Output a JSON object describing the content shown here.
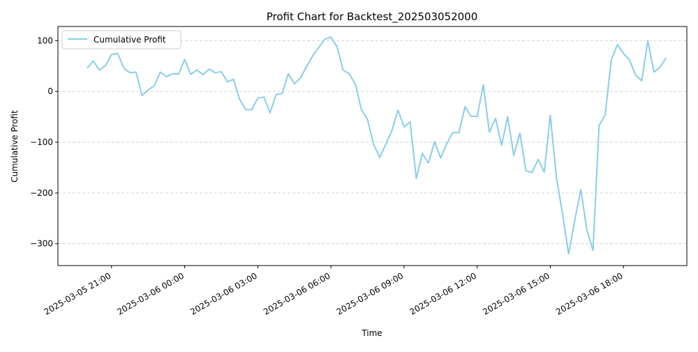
{
  "chart_data": {
    "type": "line",
    "title": "Profit Chart for Backtest_202503052000",
    "xlabel": "Time",
    "ylabel": "Cumulative Profit",
    "legend": {
      "position": "top-left",
      "entries": [
        "Cumulative Profit"
      ]
    },
    "grid": {
      "y": true,
      "x": false,
      "style": "dashed"
    },
    "ylim": [
      -343,
      128
    ],
    "xlim_hours_since_2025-03-05_21:00": [
      -2.2,
      23.6
    ],
    "x_ticks": [
      "2025-03-05 21:00",
      "2025-03-06 00:00",
      "2025-03-06 03:00",
      "2025-03-06 06:00",
      "2025-03-06 09:00",
      "2025-03-06 12:00",
      "2025-03-06 15:00",
      "2025-03-06 18:00"
    ],
    "y_ticks": [
      100,
      0,
      -100,
      -200,
      -300
    ],
    "y_tick_labels": [
      "100",
      "0",
      "−100",
      "−200",
      "−300"
    ],
    "series": [
      {
        "name": "Cumulative Profit",
        "color": "#87ceeb",
        "x": [
          "2025-03-05 20:00",
          "2025-03-05 20:15",
          "2025-03-05 20:30",
          "2025-03-05 20:45",
          "2025-03-05 21:00",
          "2025-03-05 21:15",
          "2025-03-05 21:30",
          "2025-03-05 21:45",
          "2025-03-05 22:00",
          "2025-03-05 22:15",
          "2025-03-05 22:30",
          "2025-03-05 22:45",
          "2025-03-05 23:00",
          "2025-03-05 23:15",
          "2025-03-05 23:30",
          "2025-03-05 23:45",
          "2025-03-06 00:00",
          "2025-03-06 00:15",
          "2025-03-06 00:30",
          "2025-03-06 00:45",
          "2025-03-06 01:00",
          "2025-03-06 01:15",
          "2025-03-06 01:30",
          "2025-03-06 01:45",
          "2025-03-06 02:00",
          "2025-03-06 02:15",
          "2025-03-06 02:30",
          "2025-03-06 02:45",
          "2025-03-06 03:00",
          "2025-03-06 03:15",
          "2025-03-06 03:30",
          "2025-03-06 03:45",
          "2025-03-06 04:00",
          "2025-03-06 04:15",
          "2025-03-06 04:30",
          "2025-03-06 04:45",
          "2025-03-06 05:00",
          "2025-03-06 05:15",
          "2025-03-06 05:30",
          "2025-03-06 05:45",
          "2025-03-06 06:00",
          "2025-03-06 06:15",
          "2025-03-06 06:30",
          "2025-03-06 06:45",
          "2025-03-06 07:00",
          "2025-03-06 07:15",
          "2025-03-06 07:30",
          "2025-03-06 07:45",
          "2025-03-06 08:00",
          "2025-03-06 08:15",
          "2025-03-06 08:30",
          "2025-03-06 08:45",
          "2025-03-06 09:00",
          "2025-03-06 09:15",
          "2025-03-06 09:30",
          "2025-03-06 09:45",
          "2025-03-06 10:00",
          "2025-03-06 10:15",
          "2025-03-06 10:30",
          "2025-03-06 10:45",
          "2025-03-06 11:00",
          "2025-03-06 11:15",
          "2025-03-06 11:30",
          "2025-03-06 11:45",
          "2025-03-06 12:00",
          "2025-03-06 12:15",
          "2025-03-06 12:30",
          "2025-03-06 12:45",
          "2025-03-06 13:00",
          "2025-03-06 13:15",
          "2025-03-06 13:30",
          "2025-03-06 13:45",
          "2025-03-06 14:00",
          "2025-03-06 14:15",
          "2025-03-06 14:30",
          "2025-03-06 14:45",
          "2025-03-06 15:00",
          "2025-03-06 15:15",
          "2025-03-06 15:30",
          "2025-03-06 15:45",
          "2025-03-06 16:00",
          "2025-03-06 16:15",
          "2025-03-06 16:30",
          "2025-03-06 16:45",
          "2025-03-06 17:00",
          "2025-03-06 17:15",
          "2025-03-06 17:30",
          "2025-03-06 17:45",
          "2025-03-06 18:00",
          "2025-03-06 18:15",
          "2025-03-06 18:30",
          "2025-03-06 18:45",
          "2025-03-06 19:00",
          "2025-03-06 19:15",
          "2025-03-06 19:30",
          "2025-03-06 19:45"
        ],
        "values": [
          46,
          60,
          42,
          51,
          73,
          75,
          46,
          37,
          38,
          -8,
          3,
          11,
          38,
          29,
          35,
          34,
          63,
          34,
          42,
          33,
          44,
          37,
          39,
          19,
          24,
          -15,
          -36,
          -36,
          -13,
          -11,
          -42,
          -6,
          -4,
          35,
          15,
          27,
          49,
          70,
          87,
          103,
          107,
          88,
          42,
          35,
          14,
          -36,
          -55,
          -104,
          -130,
          -104,
          -77,
          -37,
          -70,
          -60,
          -171,
          -122,
          -141,
          -99,
          -131,
          -103,
          -81,
          -81,
          -30,
          -49,
          -49,
          13,
          -80,
          -53,
          -106,
          -50,
          -126,
          -82,
          -156,
          -160,
          -134,
          -159,
          -47,
          -170,
          -241,
          -320,
          -254,
          -193,
          -273,
          -313,
          -67,
          -46,
          62,
          92,
          75,
          62,
          32,
          21,
          100,
          38,
          48,
          66
        ]
      }
    ]
  }
}
